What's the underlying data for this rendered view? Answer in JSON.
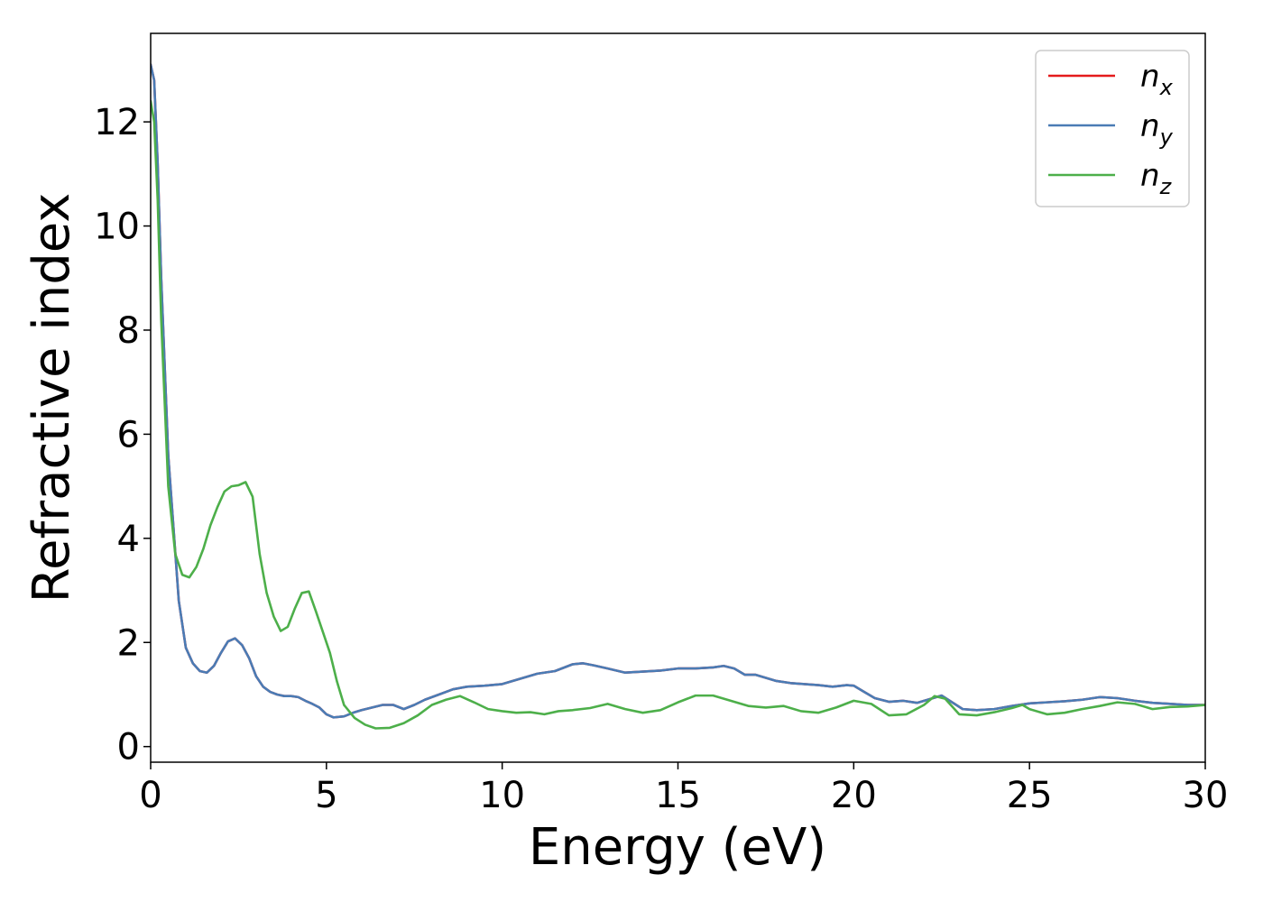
{
  "chart_data": {
    "type": "line",
    "xlabel": "Energy (eV)",
    "ylabel": "Refractive index",
    "xlim": [
      0,
      30
    ],
    "ylim": [
      -0.3,
      13.7
    ],
    "xticks": [
      0,
      5,
      10,
      15,
      20,
      25,
      30
    ],
    "yticks": [
      0,
      2,
      4,
      6,
      8,
      10,
      12
    ],
    "grid": false,
    "legend_position": "top-right",
    "series": [
      {
        "name": "n_x",
        "legend_main": "n",
        "legend_sub": "x",
        "color": "#e41a1c",
        "x": [
          0,
          0.1,
          0.2,
          0.3,
          0.5,
          0.8,
          1.0,
          1.2,
          1.4,
          1.6,
          1.8,
          2.0,
          2.2,
          2.4,
          2.6,
          2.8,
          3.0,
          3.2,
          3.4,
          3.6,
          3.8,
          4.0,
          4.2,
          4.4,
          4.6,
          4.8,
          5.0,
          5.2,
          5.5,
          5.8,
          6.0,
          6.3,
          6.6,
          6.9,
          7.2,
          7.5,
          7.8,
          8.2,
          8.6,
          9.0,
          9.5,
          10.0,
          10.5,
          11.0,
          11.5,
          12.0,
          12.3,
          12.6,
          13.0,
          13.5,
          14.0,
          14.5,
          15.0,
          15.5,
          16.0,
          16.3,
          16.6,
          16.9,
          17.2,
          17.5,
          17.8,
          18.2,
          18.6,
          19.0,
          19.4,
          19.8,
          20.0,
          20.3,
          20.6,
          21.0,
          21.4,
          21.8,
          22.2,
          22.5,
          22.8,
          23.1,
          23.5,
          24.0,
          24.5,
          25.0,
          25.5,
          26.0,
          26.5,
          27.0,
          27.5,
          28.0,
          28.5,
          29.0,
          29.5,
          30.0
        ],
        "y": [
          13.1,
          12.8,
          11.2,
          9.0,
          5.6,
          2.8,
          1.9,
          1.6,
          1.45,
          1.42,
          1.55,
          1.8,
          2.02,
          2.08,
          1.95,
          1.7,
          1.35,
          1.15,
          1.05,
          1.0,
          0.97,
          0.97,
          0.95,
          0.88,
          0.82,
          0.75,
          0.62,
          0.56,
          0.58,
          0.66,
          0.7,
          0.75,
          0.8,
          0.8,
          0.72,
          0.8,
          0.9,
          1.0,
          1.1,
          1.15,
          1.17,
          1.2,
          1.3,
          1.4,
          1.45,
          1.58,
          1.6,
          1.56,
          1.5,
          1.42,
          1.44,
          1.46,
          1.5,
          1.5,
          1.52,
          1.55,
          1.5,
          1.38,
          1.38,
          1.32,
          1.26,
          1.22,
          1.2,
          1.18,
          1.15,
          1.18,
          1.17,
          1.05,
          0.93,
          0.86,
          0.88,
          0.84,
          0.92,
          0.98,
          0.85,
          0.72,
          0.7,
          0.72,
          0.78,
          0.83,
          0.85,
          0.87,
          0.9,
          0.95,
          0.93,
          0.88,
          0.84,
          0.82,
          0.8,
          0.8
        ]
      },
      {
        "name": "n_y",
        "legend_main": "n",
        "legend_sub": "y",
        "color": "#4a7cb5",
        "x": [
          0,
          0.1,
          0.2,
          0.3,
          0.5,
          0.8,
          1.0,
          1.2,
          1.4,
          1.6,
          1.8,
          2.0,
          2.2,
          2.4,
          2.6,
          2.8,
          3.0,
          3.2,
          3.4,
          3.6,
          3.8,
          4.0,
          4.2,
          4.4,
          4.6,
          4.8,
          5.0,
          5.2,
          5.5,
          5.8,
          6.0,
          6.3,
          6.6,
          6.9,
          7.2,
          7.5,
          7.8,
          8.2,
          8.6,
          9.0,
          9.5,
          10.0,
          10.5,
          11.0,
          11.5,
          12.0,
          12.3,
          12.6,
          13.0,
          13.5,
          14.0,
          14.5,
          15.0,
          15.5,
          16.0,
          16.3,
          16.6,
          16.9,
          17.2,
          17.5,
          17.8,
          18.2,
          18.6,
          19.0,
          19.4,
          19.8,
          20.0,
          20.3,
          20.6,
          21.0,
          21.4,
          21.8,
          22.2,
          22.5,
          22.8,
          23.1,
          23.5,
          24.0,
          24.5,
          25.0,
          25.5,
          26.0,
          26.5,
          27.0,
          27.5,
          28.0,
          28.5,
          29.0,
          29.5,
          30.0
        ],
        "y": [
          13.1,
          12.8,
          11.2,
          9.0,
          5.6,
          2.8,
          1.9,
          1.6,
          1.45,
          1.42,
          1.55,
          1.8,
          2.02,
          2.08,
          1.95,
          1.7,
          1.35,
          1.15,
          1.05,
          1.0,
          0.97,
          0.97,
          0.95,
          0.88,
          0.82,
          0.75,
          0.62,
          0.56,
          0.58,
          0.66,
          0.7,
          0.75,
          0.8,
          0.8,
          0.72,
          0.8,
          0.9,
          1.0,
          1.1,
          1.15,
          1.17,
          1.2,
          1.3,
          1.4,
          1.45,
          1.58,
          1.6,
          1.56,
          1.5,
          1.42,
          1.44,
          1.46,
          1.5,
          1.5,
          1.52,
          1.55,
          1.5,
          1.38,
          1.38,
          1.32,
          1.26,
          1.22,
          1.2,
          1.18,
          1.15,
          1.18,
          1.17,
          1.05,
          0.93,
          0.86,
          0.88,
          0.84,
          0.92,
          0.98,
          0.85,
          0.72,
          0.7,
          0.72,
          0.78,
          0.83,
          0.85,
          0.87,
          0.9,
          0.95,
          0.93,
          0.88,
          0.84,
          0.82,
          0.8,
          0.8
        ]
      },
      {
        "name": "n_z",
        "legend_main": "n",
        "legend_sub": "z",
        "color": "#4daf4a",
        "x": [
          0,
          0.1,
          0.2,
          0.3,
          0.5,
          0.7,
          0.9,
          1.1,
          1.3,
          1.5,
          1.7,
          1.9,
          2.1,
          2.3,
          2.5,
          2.7,
          2.9,
          3.1,
          3.3,
          3.5,
          3.7,
          3.9,
          4.1,
          4.3,
          4.5,
          4.7,
          4.9,
          5.1,
          5.3,
          5.5,
          5.8,
          6.1,
          6.4,
          6.8,
          7.2,
          7.6,
          8.0,
          8.4,
          8.8,
          9.2,
          9.6,
          10.0,
          10.4,
          10.8,
          11.2,
          11.6,
          12.0,
          12.5,
          13.0,
          13.5,
          14.0,
          14.5,
          15.0,
          15.5,
          16.0,
          16.5,
          17.0,
          17.5,
          18.0,
          18.5,
          19.0,
          19.5,
          20.0,
          20.5,
          21.0,
          21.5,
          22.0,
          22.3,
          22.6,
          23.0,
          23.5,
          24.0,
          24.5,
          24.8,
          25.0,
          25.5,
          26.0,
          26.5,
          27.0,
          27.5,
          28.0,
          28.5,
          29.0,
          29.5,
          30.0
        ],
        "y": [
          12.4,
          12.0,
          10.5,
          8.2,
          5.0,
          3.7,
          3.3,
          3.25,
          3.45,
          3.8,
          4.25,
          4.6,
          4.9,
          5.0,
          5.02,
          5.08,
          4.8,
          3.7,
          2.95,
          2.5,
          2.22,
          2.3,
          2.65,
          2.95,
          2.98,
          2.6,
          2.2,
          1.8,
          1.25,
          0.8,
          0.55,
          0.42,
          0.35,
          0.36,
          0.45,
          0.6,
          0.8,
          0.9,
          0.97,
          0.85,
          0.72,
          0.68,
          0.65,
          0.66,
          0.62,
          0.68,
          0.7,
          0.74,
          0.82,
          0.72,
          0.65,
          0.7,
          0.85,
          0.98,
          0.98,
          0.88,
          0.78,
          0.75,
          0.78,
          0.68,
          0.65,
          0.75,
          0.88,
          0.82,
          0.6,
          0.62,
          0.8,
          0.97,
          0.92,
          0.62,
          0.6,
          0.66,
          0.74,
          0.8,
          0.72,
          0.62,
          0.65,
          0.72,
          0.78,
          0.85,
          0.82,
          0.72,
          0.76,
          0.77,
          0.8
        ]
      }
    ]
  }
}
